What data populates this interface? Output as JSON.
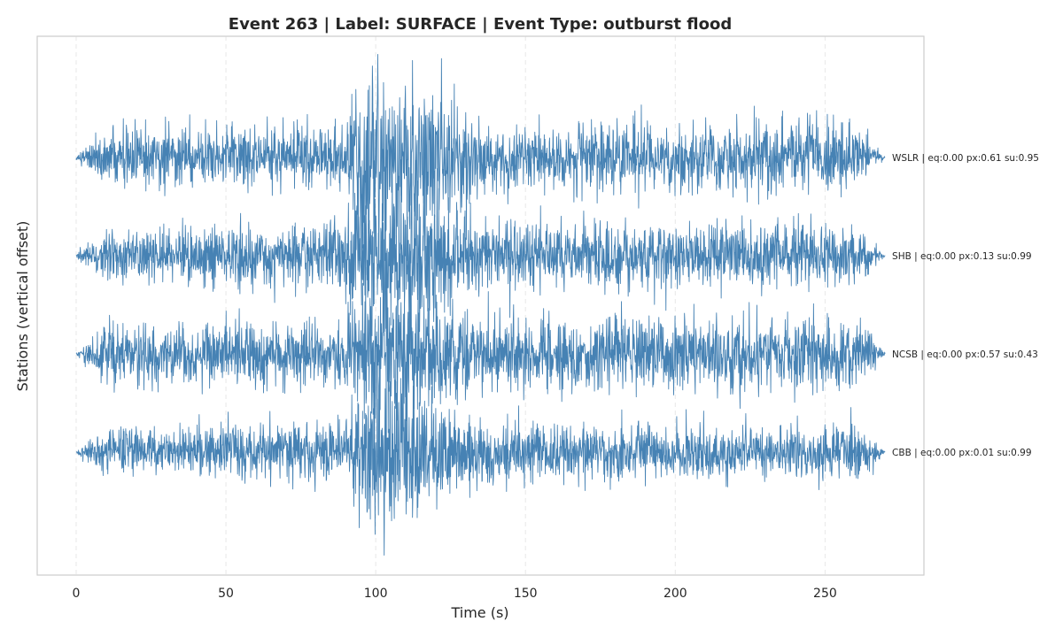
{
  "chart_data": {
    "type": "line",
    "title": "Event 263 | Label: SURFACE | Event Type: outburst flood",
    "xlabel": "Time (s)",
    "ylabel": "Stations (vertical offset)",
    "xlim": [
      -13,
      283
    ],
    "xticks": [
      0,
      50,
      100,
      150,
      200,
      250
    ],
    "grid": true,
    "line_color": "#4682b4",
    "series": [
      {
        "name": "WSLR",
        "label": "WSLR | eq:0.00 px:0.61 su:0.95",
        "offset": 3,
        "duration": 270,
        "envelope": [
          [
            0,
            0.02
          ],
          [
            4,
            0.15
          ],
          [
            10,
            0.32
          ],
          [
            90,
            0.38
          ],
          [
            95,
            1.0
          ],
          [
            110,
            1.05
          ],
          [
            125,
            0.7
          ],
          [
            140,
            0.38
          ],
          [
            245,
            0.42
          ],
          [
            255,
            0.48
          ],
          [
            262,
            0.3
          ],
          [
            268,
            0.08
          ],
          [
            270,
            0.02
          ]
        ]
      },
      {
        "name": "SHB",
        "label": "SHB | eq:0.00 px:0.13 su:0.99",
        "offset": 2,
        "duration": 270,
        "envelope": [
          [
            0,
            0.02
          ],
          [
            4,
            0.15
          ],
          [
            10,
            0.3
          ],
          [
            85,
            0.38
          ],
          [
            95,
            0.85
          ],
          [
            110,
            0.9
          ],
          [
            125,
            0.6
          ],
          [
            140,
            0.38
          ],
          [
            245,
            0.4
          ],
          [
            262,
            0.3
          ],
          [
            268,
            0.08
          ],
          [
            270,
            0.02
          ]
        ]
      },
      {
        "name": "NCSB",
        "label": "NCSB | eq:0.00 px:0.57 su:0.43",
        "offset": 1,
        "duration": 270,
        "envelope": [
          [
            0,
            0.02
          ],
          [
            4,
            0.15
          ],
          [
            10,
            0.36
          ],
          [
            90,
            0.42
          ],
          [
            98,
            0.95
          ],
          [
            110,
            0.95
          ],
          [
            125,
            0.62
          ],
          [
            140,
            0.45
          ],
          [
            262,
            0.44
          ],
          [
            268,
            0.1
          ],
          [
            270,
            0.02
          ]
        ]
      },
      {
        "name": "CBB",
        "label": "CBB | eq:0.00 px:0.01 su:0.99",
        "offset": 0,
        "duration": 270,
        "envelope": [
          [
            0,
            0.02
          ],
          [
            4,
            0.12
          ],
          [
            10,
            0.28
          ],
          [
            90,
            0.34
          ],
          [
            98,
            0.95
          ],
          [
            110,
            0.95
          ],
          [
            125,
            0.55
          ],
          [
            140,
            0.34
          ],
          [
            262,
            0.32
          ],
          [
            268,
            0.08
          ],
          [
            270,
            0.02
          ]
        ]
      }
    ]
  }
}
